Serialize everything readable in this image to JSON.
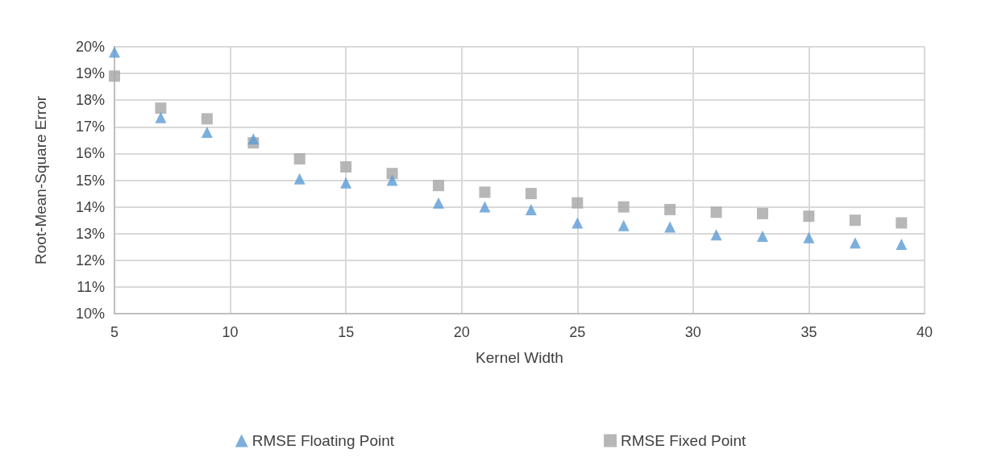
{
  "chart_data": {
    "type": "scatter",
    "xlabel": "Kernel Width",
    "ylabel": "Root-Mean-Square Error",
    "x": [
      5,
      7,
      9,
      11,
      13,
      15,
      17,
      19,
      21,
      23,
      25,
      27,
      29,
      31,
      33,
      35,
      37,
      39
    ],
    "series": [
      {
        "name": "RMSE Floating Point",
        "color": "#5b9bd5",
        "marker": "triangle",
        "values": [
          19.8,
          17.35,
          16.8,
          16.55,
          15.05,
          14.9,
          15.0,
          14.15,
          14.0,
          13.9,
          13.4,
          13.3,
          13.25,
          12.95,
          12.9,
          12.85,
          12.65,
          12.6
        ]
      },
      {
        "name": "RMSE Fixed Point",
        "color": "#a5a5a5",
        "marker": "square",
        "values": [
          18.9,
          17.7,
          17.3,
          16.4,
          15.8,
          15.5,
          15.25,
          14.8,
          14.55,
          14.5,
          14.15,
          14.0,
          13.9,
          13.8,
          13.75,
          13.65,
          13.5,
          13.4
        ]
      }
    ],
    "xlim": [
      5,
      40
    ],
    "xticks": [
      5,
      10,
      15,
      20,
      25,
      30,
      35,
      40
    ],
    "ylim": [
      10,
      20
    ],
    "yticks": [
      {
        "value": 10,
        "label": "10%"
      },
      {
        "value": 11,
        "label": "11%"
      },
      {
        "value": 12,
        "label": "12%"
      },
      {
        "value": 13,
        "label": "13%"
      },
      {
        "value": 14,
        "label": "14%"
      },
      {
        "value": 15,
        "label": "15%"
      },
      {
        "value": 16,
        "label": "16%"
      },
      {
        "value": 17,
        "label": "17%"
      },
      {
        "value": 18,
        "label": "18%"
      },
      {
        "value": 19,
        "label": "19%"
      },
      {
        "value": 20,
        "label": "20%"
      }
    ],
    "grid": true,
    "legend": "bottom"
  }
}
